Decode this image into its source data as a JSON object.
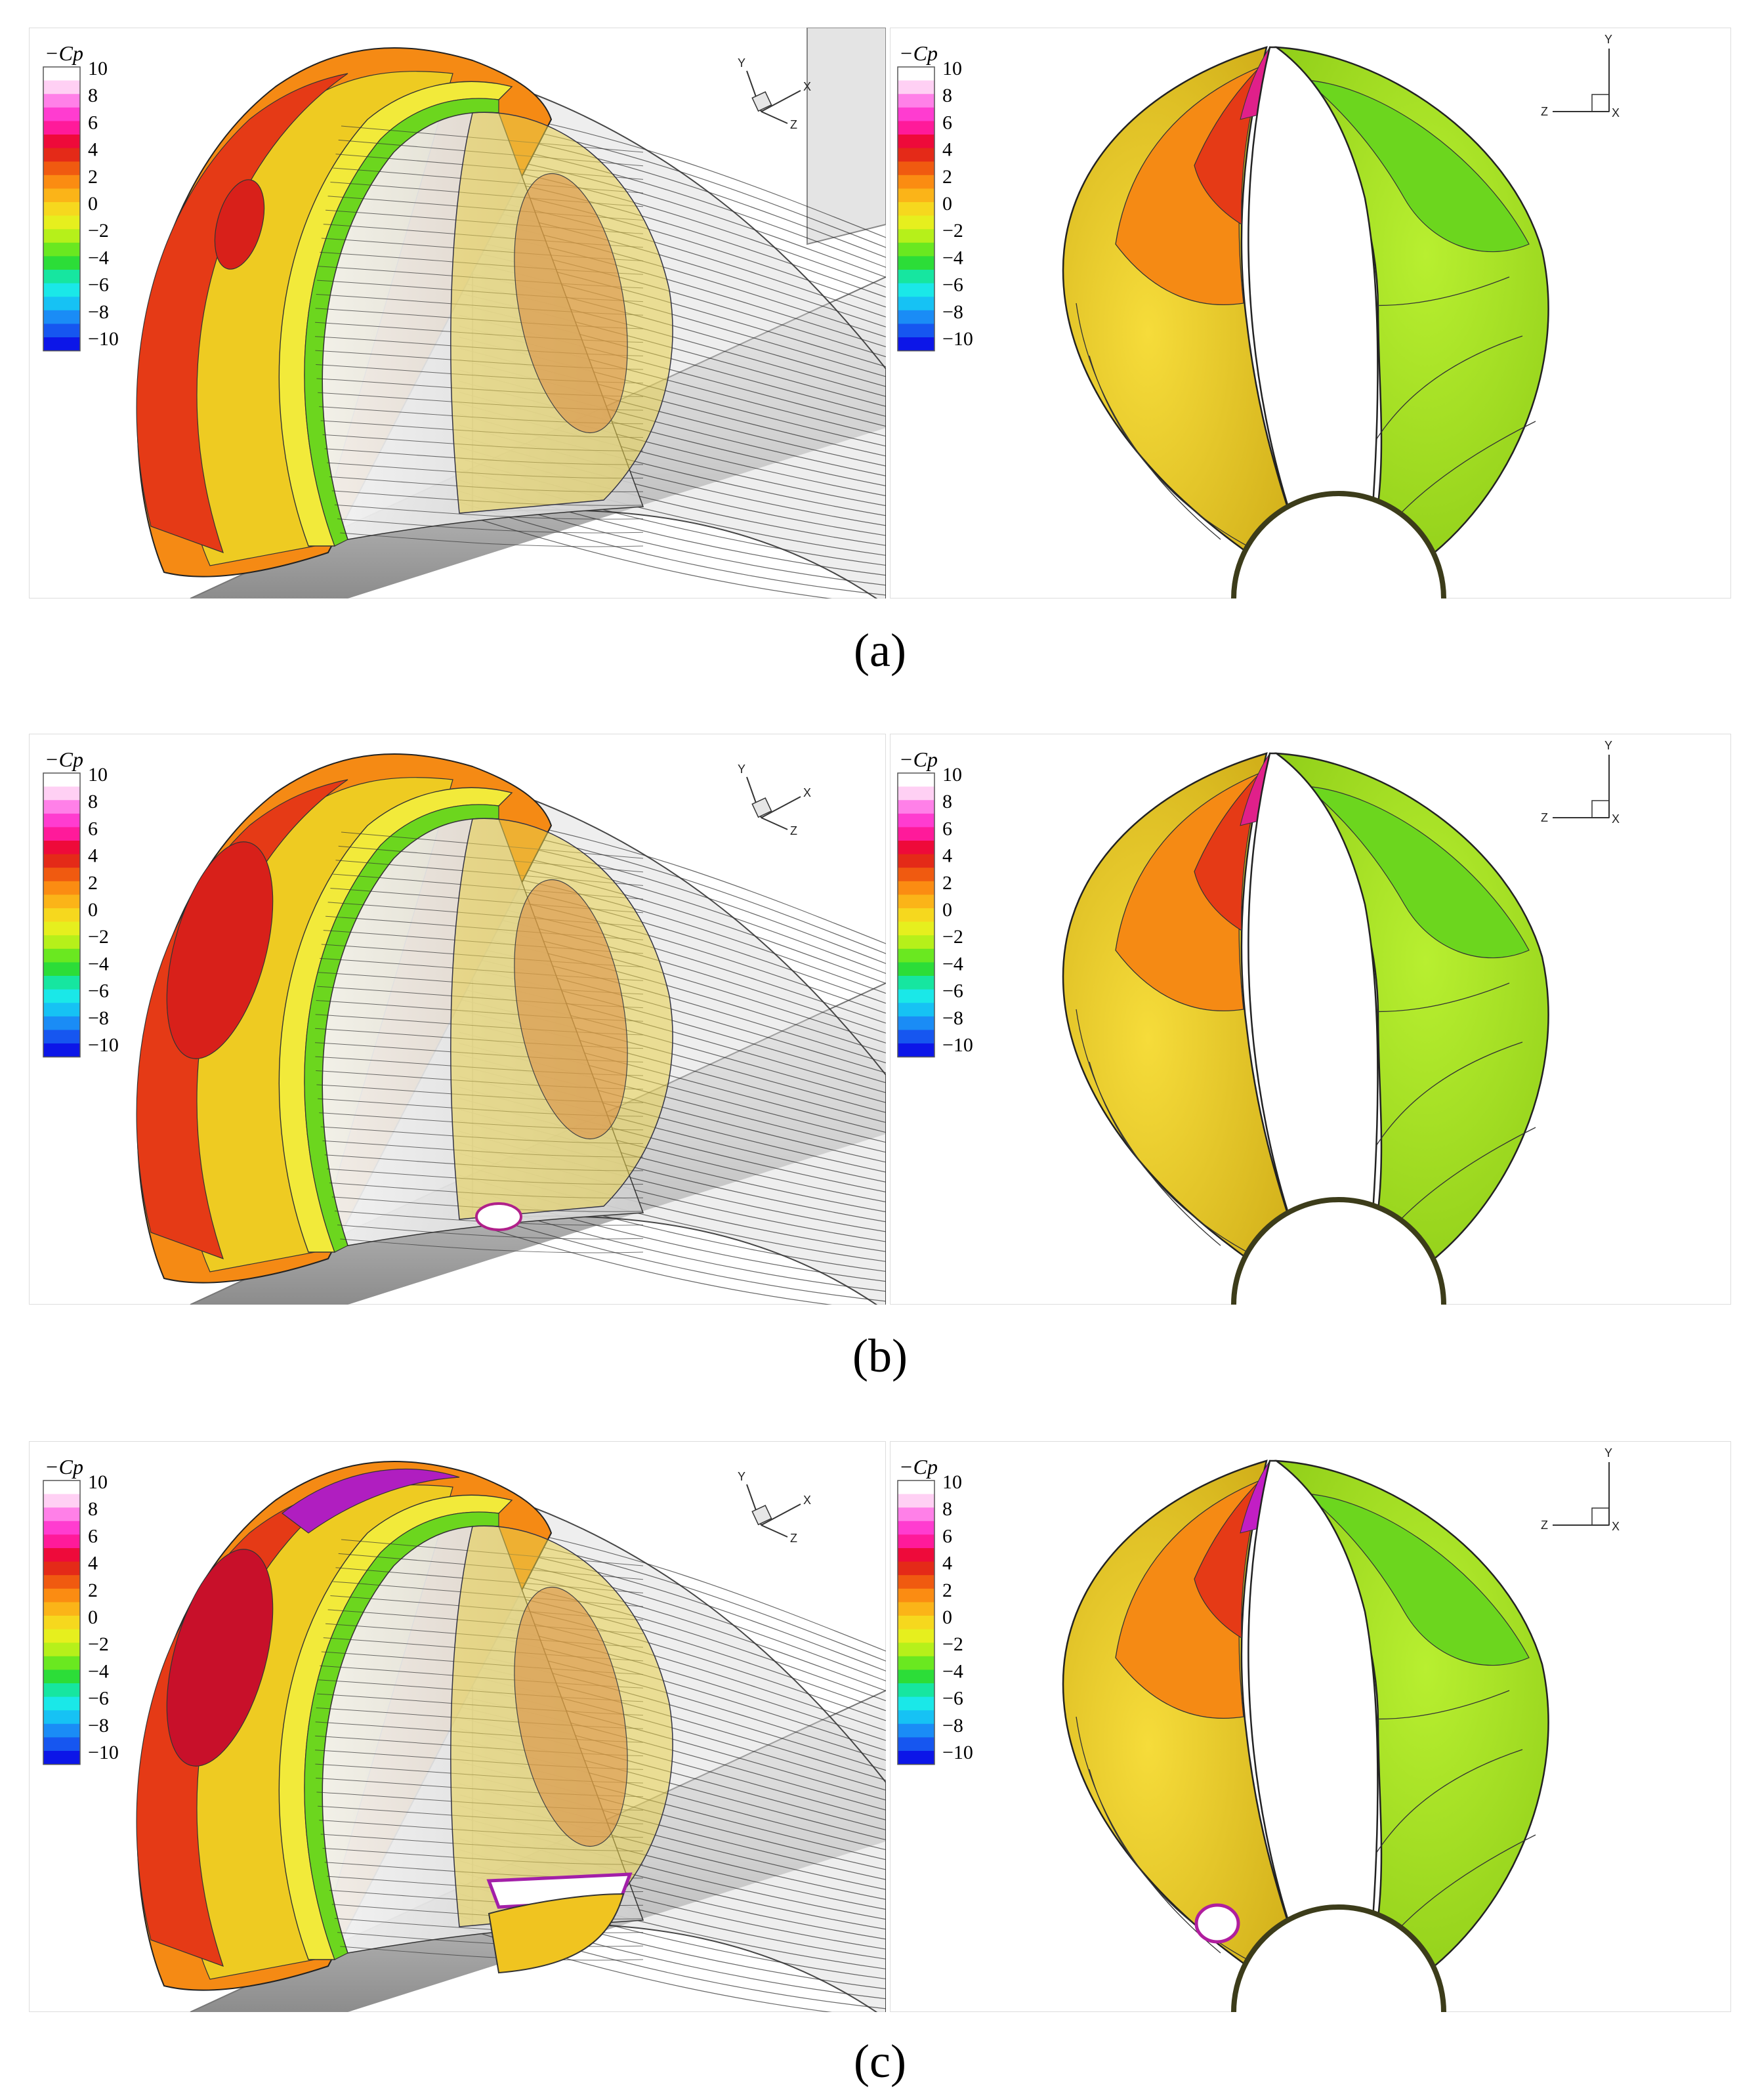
{
  "legend": {
    "title": "−Cp",
    "ticks": [
      "10",
      "8",
      "6",
      "4",
      "2",
      "0",
      "−2",
      "−4",
      "−6",
      "−8",
      "−10"
    ],
    "colors": [
      "#ffffff",
      "#ffd0f4",
      "#ff80e8",
      "#ff3cd0",
      "#ff1a9a",
      "#ee0a3a",
      "#e42a18",
      "#f05a10",
      "#fb8c12",
      "#fbb418",
      "#f6d81e",
      "#e6ef1e",
      "#b6f01a",
      "#6ae820",
      "#2cdd38",
      "#16e6a0",
      "#1ae8e8",
      "#16c2f4",
      "#1a8cf6",
      "#1656f0",
      "#0c16e8"
    ]
  },
  "axes": {
    "x": "X",
    "y": "Y",
    "z": "Z"
  },
  "captions": [
    "(a)",
    "(b)",
    "(c)"
  ],
  "colors": {
    "high": "#e53a16",
    "upper_mid": "#f58a14",
    "mid": "#eecb22",
    "low": "#c6e21c",
    "suction": "#6cd61e",
    "hub": "#d0d0d0"
  }
}
